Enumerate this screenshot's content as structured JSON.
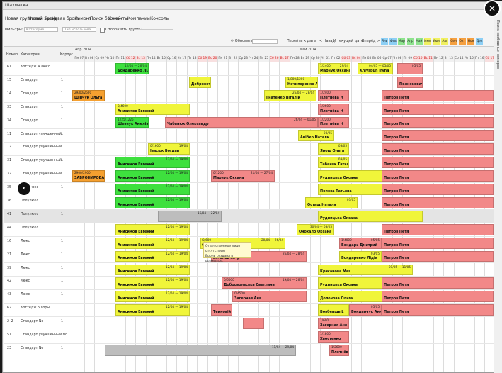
{
  "window": {
    "title": "Шахматка"
  },
  "menu": [
    "Новая групповая бронь",
    "Новый заезд",
    "Новая бронь",
    "Ремонт",
    "Поиск броней",
    "Клиенты",
    "Компании",
    "Консоль"
  ],
  "filters": {
    "label": "Фильтры:",
    "category_placeholder": "Категория",
    "type_placeholder": "Тип использова",
    "groups_label": "Отобразить группы"
  },
  "toolbar": {
    "refresh": "Обновить",
    "goto_date": "Перейти к дате",
    "back": "< Назад",
    "today": "К текущей дате",
    "forward": "Вперёд >",
    "months": [
      "Янв",
      "Фев",
      "Мар",
      "Апр",
      "Май",
      "Июн",
      "Июл",
      "Авг",
      "Сен",
      "Окт",
      "Ноя",
      "Дек"
    ]
  },
  "grid": {
    "col_number": "Номер",
    "col_category": "Категория",
    "col_building": "Корпус",
    "month_labels": [
      "Апр 2014",
      "Май 2014"
    ],
    "days": [
      "Пн 07",
      "Вт 08",
      "Ср 09",
      "Чт 10",
      "Пт 11",
      "Сб 12",
      "Вс 13",
      "Пн 14",
      "Вт 15",
      "Ср 16",
      "Чт 17",
      "Пт 18",
      "Сб 19",
      "Вс 20",
      "Пн 21",
      "Вт 22",
      "Ср 23",
      "Чт 24",
      "Пт 25",
      "Сб 26",
      "Вс 27",
      "Пн 28",
      "Вт 29",
      "Ср 30",
      "Чт 01",
      "Пт 02",
      "Сб 03",
      "Вс 04",
      "Пн 05",
      "Вт 06",
      "Ср 07",
      "Чт 08",
      "Пт 09",
      "Сб 10",
      "Вс 11",
      "Пн 12",
      "Вт 13",
      "Ср 14",
      "Чт 15",
      "Пт 16",
      "Сб 17",
      "Вс 18",
      "Пн 19",
      "Вт 20",
      "Ср 21",
      "Чт 22",
      "Пт 23",
      "Сб 24",
      "Вс 25"
    ],
    "rows": [
      {
        "num": "61",
        "cat": "Коттедж А люкс",
        "bld": "1"
      },
      {
        "num": "15",
        "cat": "Стандарт",
        "bld": "1"
      },
      {
        "num": "14",
        "cat": "Стандарт",
        "bld": "1"
      },
      {
        "num": "33",
        "cat": "Стандарт",
        "bld": "1"
      },
      {
        "num": "34",
        "cat": "Стандарт",
        "bld": "1"
      },
      {
        "num": "11",
        "cat": "Стандарт улучшенный",
        "bld": "1"
      },
      {
        "num": "12",
        "cat": "Стандарт улучшенный",
        "bld": "1"
      },
      {
        "num": "31",
        "cat": "Стандарт улучшенный",
        "bld": "1"
      },
      {
        "num": "32",
        "cat": "Стандарт улучшенный",
        "bld": "1"
      },
      {
        "num": "35",
        "cat": "Полулюкс",
        "bld": "1"
      },
      {
        "num": "36",
        "cat": "Полулюкс",
        "bld": "1"
      },
      {
        "num": "41",
        "cat": "Полулюкс",
        "bld": "1"
      },
      {
        "num": "44",
        "cat": "Полулюкс",
        "bld": "1"
      },
      {
        "num": "16",
        "cat": "Люкс",
        "bld": "1"
      },
      {
        "num": "21",
        "cat": "Люкс",
        "bld": "1"
      },
      {
        "num": "39",
        "cat": "Люкс",
        "bld": "1"
      },
      {
        "num": "42",
        "cat": "Люкс",
        "bld": "1"
      },
      {
        "num": "43",
        "cat": "Люкс",
        "bld": "1"
      },
      {
        "num": "62",
        "cat": "Коттедж Б горы",
        "bld": "1"
      },
      {
        "num": "2_2",
        "cat": "Стандарт No",
        "bld": "1"
      },
      {
        "num": "51",
        "cat": "Стандарт улучшенный No",
        "bld": "1"
      },
      {
        "num": "23",
        "cat": "Стандарт No",
        "bld": "1"
      }
    ]
  },
  "bookings": [
    {
      "row": 0,
      "color": "g",
      "name": "Бондаренко Лідія",
      "dates": "12/04 — 26/04"
    },
    {
      "row": 0,
      "color": "y",
      "name": "Марчук Оксана",
      "dates": "29/04",
      "pf": "1/2400"
    },
    {
      "row": 0,
      "color": "y",
      "name": "Khlysbun Iryna",
      "dates": "04/05 — 05/05"
    },
    {
      "row": 0,
      "color": "r",
      "name": "",
      "dates": "05/05"
    },
    {
      "row": 1,
      "color": "y",
      "name": "Добровоть",
      "dates": ""
    },
    {
      "row": 1,
      "color": "y",
      "name": "Нечипоренко Анн",
      "dates": "",
      "pf": "1/800/1200"
    },
    {
      "row": 1,
      "color": "r",
      "name": "Полнякович",
      "dates": ""
    },
    {
      "row": 2,
      "color": "o",
      "name": "Шінчук Ольга",
      "dates": "",
      "pf": "29/00/2600"
    },
    {
      "row": 2,
      "color": "y",
      "name": "Гнатенко Віталій",
      "dates": "26/04 — 28/04"
    },
    {
      "row": 2,
      "color": "r",
      "name": "Плетнёва Н",
      "dates": "",
      "pf": "1/2400"
    },
    {
      "row": 2,
      "color": "r",
      "name": "Петров Петя",
      "dates": ""
    },
    {
      "row": 3,
      "color": "y",
      "name": "Анисимов Евгений",
      "dates": "",
      "pf": "0/4600"
    },
    {
      "row": 3,
      "color": "r",
      "name": "Плетнёва Н",
      "dates": "",
      "pf": "1/2600"
    },
    {
      "row": 3,
      "color": "r",
      "name": "Петров Петя",
      "dates": ""
    },
    {
      "row": 4,
      "color": "g",
      "name": "Шевчук Амелія",
      "dates": "",
      "pf": "1225/1225"
    },
    {
      "row": 4,
      "color": "r",
      "name": "Чабанюк Олександр",
      "dates": "26/04 — 01/05"
    },
    {
      "row": 4,
      "color": "r",
      "name": "Плетнёва Н",
      "dates": "",
      "pf": "1/2200"
    },
    {
      "row": 4,
      "color": "r",
      "name": "Петров Петя",
      "dates": ""
    },
    {
      "row": 5,
      "color": "y",
      "name": "Анібко Натали",
      "dates": "03/05"
    },
    {
      "row": 5,
      "color": "r",
      "name": "Петров Петя",
      "dates": ""
    },
    {
      "row": 6,
      "color": "y",
      "name": "Івасюк Богдан",
      "dates": "19/04",
      "pf": "0/1600"
    },
    {
      "row": 6,
      "color": "y",
      "name": "Ярош Ольга",
      "dates": "03/05"
    },
    {
      "row": 6,
      "color": "r",
      "name": "Петров Петя",
      "dates": ""
    },
    {
      "row": 7,
      "color": "g",
      "name": "Анисимов Евгений",
      "dates": "12/04 — 19/04"
    },
    {
      "row": 7,
      "color": "y",
      "name": "Табаняк Татьяна",
      "dates": "03/05"
    },
    {
      "row": 7,
      "color": "r",
      "name": "Петров Петя",
      "dates": ""
    },
    {
      "row": 8,
      "color": "o",
      "name": "ЗАБРОНИРОВАНО",
      "dates": "",
      "pf": "2900/2900"
    },
    {
      "row": 8,
      "color": "g",
      "name": "Анисимов Евгений",
      "dates": "12/04 — 19/04"
    },
    {
      "row": 8,
      "color": "r",
      "name": "Марчук Оксана",
      "dates": "21/04 — 27/04",
      "pf": "0/1200"
    },
    {
      "row": 8,
      "color": "y",
      "name": "Рудницька Оксана",
      "dates": "01/05 — 11/05"
    },
    {
      "row": 8,
      "color": "r",
      "name": "Петров Петя",
      "dates": ""
    },
    {
      "row": 9,
      "color": "g",
      "name": "Анисимов Евгений",
      "dates": "12/04 — 19/04"
    },
    {
      "row": 9,
      "color": "y",
      "name": "Попова Татьяна",
      "dates": "01/05 — 11/05"
    },
    {
      "row": 9,
      "color": "r",
      "name": "Петров Петя",
      "dates": ""
    },
    {
      "row": 10,
      "color": "g",
      "name": "Анисимов Евгений",
      "dates": "12/04 — 19/04"
    },
    {
      "row": 10,
      "color": "y",
      "name": "Остащ Наталя",
      "dates": "03/05"
    },
    {
      "row": 10,
      "color": "r",
      "name": "Петров Петя",
      "dates": ""
    },
    {
      "row": 11,
      "color": "gr",
      "name": "",
      "dates": "16/04 — 22/04"
    },
    {
      "row": 11,
      "color": "y",
      "name": "Рудницька Оксана",
      "dates": ""
    },
    {
      "row": 12,
      "color": "y",
      "name": "Анисимов Евгений",
      "dates": "12/04 — 19/04"
    },
    {
      "row": 12,
      "color": "y",
      "name": "Онохало Оксана",
      "dates": "30/04 — 03/05"
    },
    {
      "row": 12,
      "color": "r",
      "name": "Петров Петя",
      "dates": ""
    },
    {
      "row": 13,
      "color": "y",
      "name": "Анисимов Евгений",
      "dates": "12/04 — 19/04"
    },
    {
      "row": 13,
      "color": "y",
      "name": "Скрипка Олександр",
      "dates": "20/04 — 26/04",
      "pf": "0/600"
    },
    {
      "row": 13,
      "color": "r",
      "name": "Бондарь Дмитрий",
      "dates": "05/05",
      "pf": "1/4000"
    },
    {
      "row": 13,
      "color": "r",
      "name": "Петров Петя",
      "dates": ""
    },
    {
      "row": 14,
      "color": "y",
      "name": "Анисимов Евгений",
      "dates": "12/04 — 19/04"
    },
    {
      "row": 14,
      "color": "r",
      "name": "антонов петр",
      "dates": "26/04 — 28/04"
    },
    {
      "row": 14,
      "color": "y",
      "name": "Бондаренко Лідія",
      "dates": "03/05"
    },
    {
      "row": 14,
      "color": "r",
      "name": "Петров Петя",
      "dates": ""
    },
    {
      "row": 15,
      "color": "y",
      "name": "Анисимов Евгений",
      "dates": "12/04 — 19/04"
    },
    {
      "row": 15,
      "color": "y",
      "name": "Крисанова Мая",
      "dates": "01/05 — 11/05"
    },
    {
      "row": 16,
      "color": "y",
      "name": "Анисимов Евгений",
      "dates": "12/04 — 19/04"
    },
    {
      "row": 16,
      "color": "r",
      "name": "Добровольська Светлана",
      "dates": "19/04 — 26/04",
      "pf": "0/6000"
    },
    {
      "row": 16,
      "color": "y",
      "name": "Рудницька Оксана",
      "dates": ""
    },
    {
      "row": 16,
      "color": "r",
      "name": "Петров Петя",
      "dates": ""
    },
    {
      "row": 17,
      "color": "y",
      "name": "Анисимов Евгений",
      "dates": "12/04 — 19/04"
    },
    {
      "row": 17,
      "color": "r",
      "name": "Загерная Аня",
      "dates": "",
      "pf": "0/4500"
    },
    {
      "row": 17,
      "color": "y",
      "name": "Долонова Ольга",
      "dates": "01/05 — 11/05"
    },
    {
      "row": 17,
      "color": "r",
      "name": "Петров Петя",
      "dates": ""
    },
    {
      "row": 18,
      "color": "y",
      "name": "Анисимов Евгений",
      "dates": "12/04 — 19/04"
    },
    {
      "row": 18,
      "color": "r",
      "name": "Терновiй",
      "dates": ""
    },
    {
      "row": 18,
      "color": "y",
      "name": "Вовбеншь L",
      "dates": ""
    },
    {
      "row": 18,
      "color": "r",
      "name": "Бондарчук Анна",
      "dates": "05/05"
    },
    {
      "row": 18,
      "color": "r",
      "name": "Петров Петя",
      "dates": ""
    },
    {
      "row": 19,
      "color": "r",
      "name": "",
      "dates": ""
    },
    {
      "row": 19,
      "color": "r",
      "name": "Загерная Аня",
      "dates": "",
      "pf": "1/600"
    },
    {
      "row": 20,
      "color": "r",
      "name": "Хвостенко",
      "dates": "",
      "pf": "1/1800"
    },
    {
      "row": 21,
      "color": "gr",
      "name": "",
      "dates": "11/04 — 29/04"
    },
    {
      "row": 21,
      "color": "r",
      "name": "Плетнёва Н",
      "dates": "",
      "pf": "1/2600"
    }
  ],
  "tooltip": {
    "line1": "Ответственное лицо отсутствует",
    "line2": "Бронь создана в шахматке."
  },
  "side_panel": {
    "label": "Поиск свободных номеров"
  }
}
